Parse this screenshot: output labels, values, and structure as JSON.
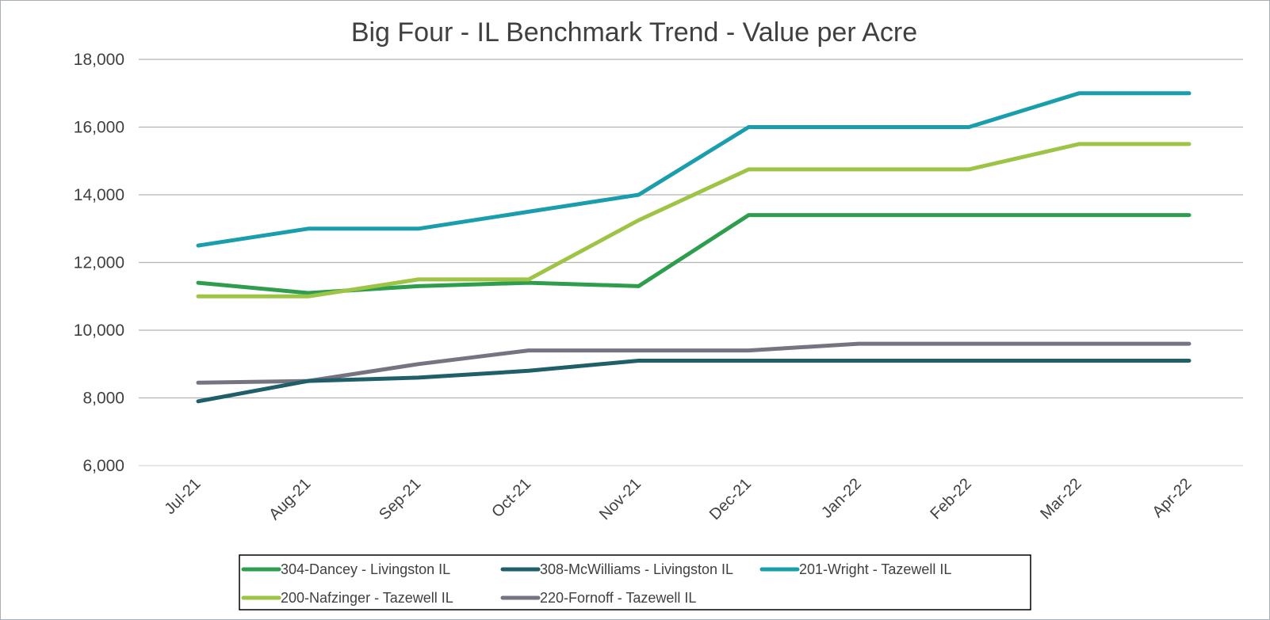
{
  "chart_data": {
    "type": "line",
    "title": "Big Four - IL Benchmark Trend - Value per Acre",
    "xlabel": "",
    "ylabel": "",
    "categories": [
      "Jul-21",
      "Aug-21",
      "Sep-21",
      "Oct-21",
      "Nov-21",
      "Dec-21",
      "Jan-22",
      "Feb-22",
      "Mar-22",
      "Apr-22"
    ],
    "ylim": [
      6000,
      18000
    ],
    "yticks": [
      6000,
      8000,
      10000,
      12000,
      14000,
      16000,
      18000
    ],
    "ytick_labels": [
      "6,000",
      "8,000",
      "10,000",
      "12,000",
      "14,000",
      "16,000",
      "18,000"
    ],
    "grid": true,
    "legend_position": "bottom",
    "series": [
      {
        "name": "304-Dancey - Livingston IL",
        "color": "#2e9e4e",
        "values": [
          11400,
          11100,
          11300,
          11400,
          11300,
          13400,
          13400,
          13400,
          13400,
          13400
        ]
      },
      {
        "name": "308-McWilliams - Livingston IL",
        "color": "#1f5f6a",
        "values": [
          7900,
          8500,
          8600,
          8800,
          9100,
          9100,
          9100,
          9100,
          9100,
          9100
        ]
      },
      {
        "name": "201-Wright - Tazewell IL",
        "color": "#1a9eae",
        "values": [
          12500,
          13000,
          13000,
          13500,
          14000,
          16000,
          16000,
          16000,
          17000,
          17000
        ]
      },
      {
        "name": "200-Nafzinger - Tazewell IL",
        "color": "#9ec446",
        "values": [
          11000,
          11000,
          11500,
          11500,
          13250,
          14750,
          14750,
          14750,
          15500,
          15500
        ]
      },
      {
        "name": "220-Fornoff - Tazewell IL",
        "color": "#757480",
        "values": [
          8450,
          8500,
          9000,
          9400,
          9400,
          9400,
          9600,
          9600,
          9600,
          9600
        ]
      }
    ]
  }
}
